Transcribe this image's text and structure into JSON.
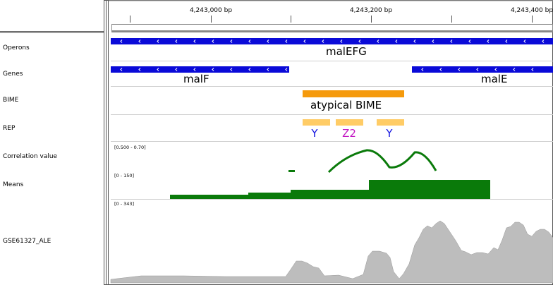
{
  "ruler": {
    "ticks": [
      "4,243,000 bp",
      "4,243,200 bp",
      "4,243,400 bp"
    ]
  },
  "tracks": {
    "operons": {
      "name": "Operons",
      "features": [
        "malEFG"
      ]
    },
    "genes": {
      "name": "Genes",
      "features": [
        "malF",
        "malE"
      ]
    },
    "bime": {
      "name": "BIME",
      "features": [
        "atypical BIME"
      ]
    },
    "rep": {
      "name": "REP",
      "features": [
        {
          "label": "Y",
          "color": "#1515e0"
        },
        {
          "label": "Z2",
          "color": "#c318c3"
        },
        {
          "label": "Y",
          "color": "#1515e0"
        }
      ]
    },
    "correlation": {
      "name": "Correlation value",
      "range": "[0.500 - 0.70]"
    },
    "means": {
      "name": "Means",
      "range": "[0 - 150]"
    },
    "coverage": {
      "name": "GSE61327_ALE",
      "range": "[0 - 343]"
    }
  },
  "colors": {
    "strand_feature": "#0a0ad8",
    "bime": "#f59a0c",
    "rep_box": "#ffcc66",
    "signal": "#0a7a0a",
    "coverage": "#bdbdbd"
  },
  "icons": [
    "reverse-strand-arrow-icon"
  ]
}
